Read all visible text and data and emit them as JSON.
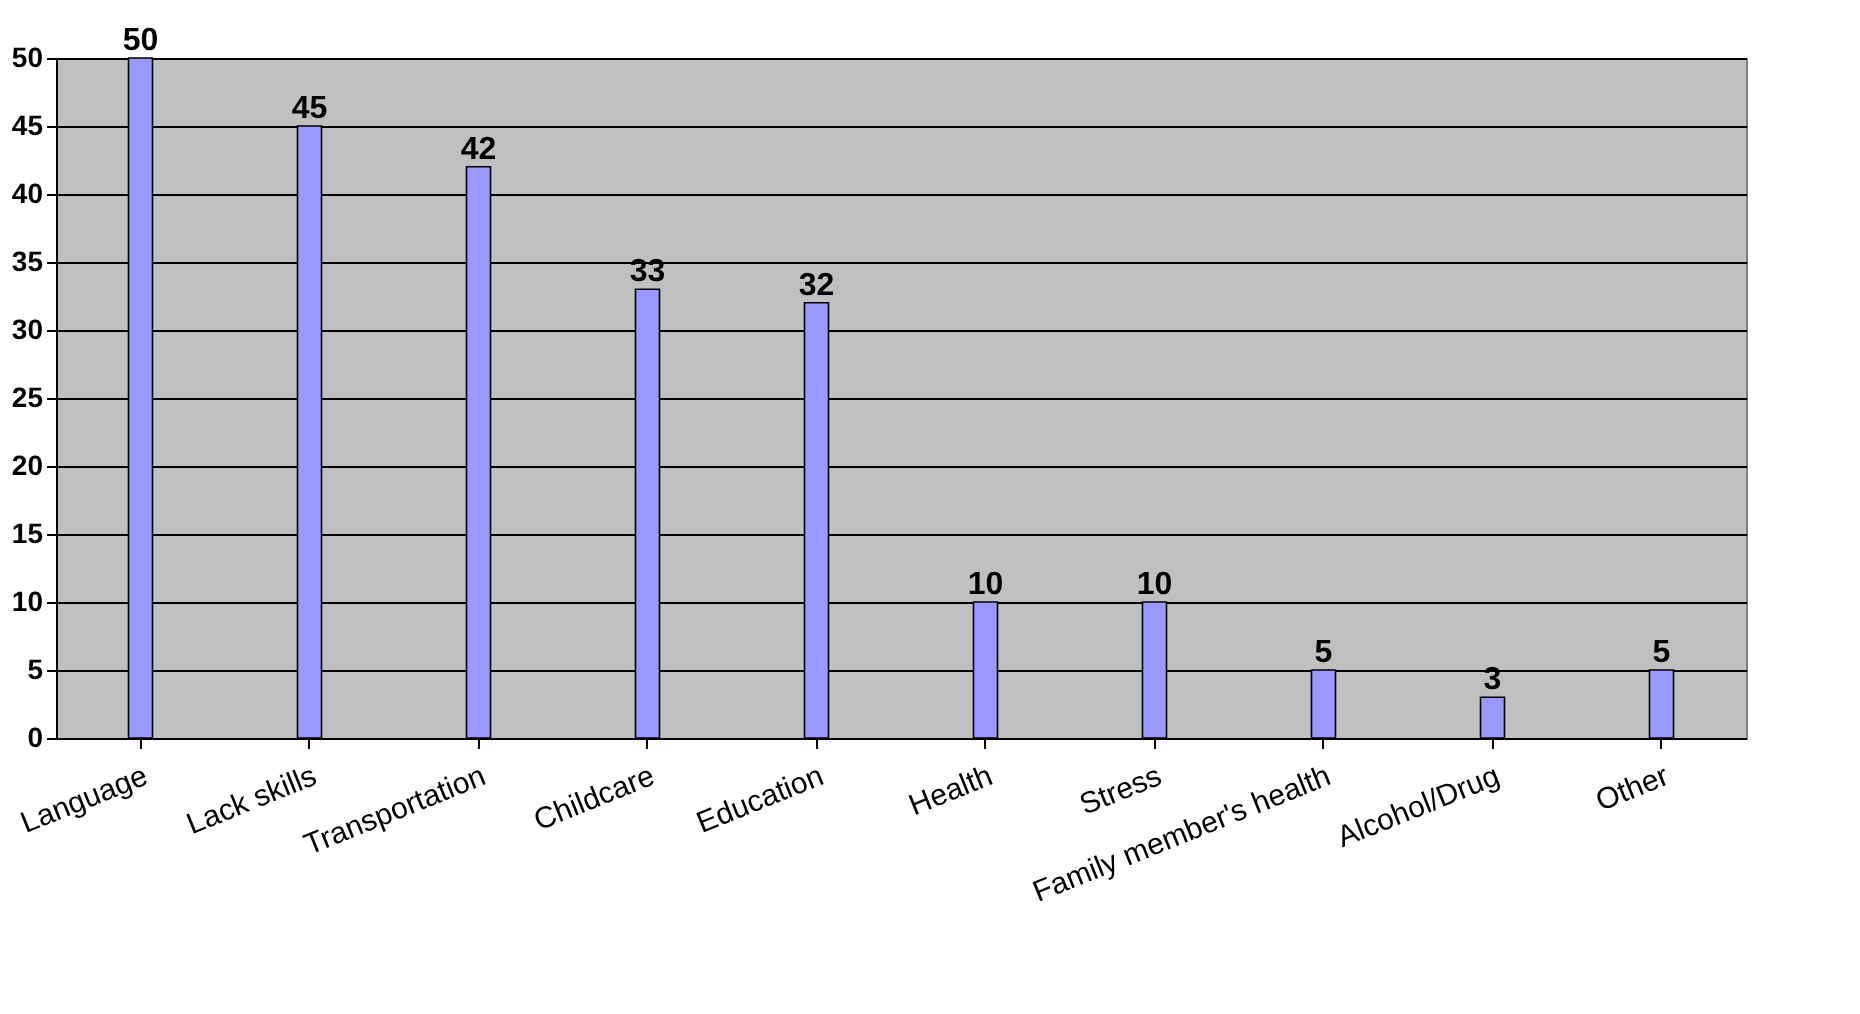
{
  "chart_data": {
    "type": "bar",
    "categories": [
      "Language",
      "Lack skills",
      "Transportation",
      "Childcare",
      "Education",
      "Health",
      "Stress",
      "Family member's health",
      "Alcohol/Drug",
      "Other"
    ],
    "values": [
      50,
      45,
      42,
      33,
      32,
      10,
      10,
      5,
      3,
      5
    ],
    "color": "#9999ff",
    "ylim": [
      0,
      50
    ],
    "yticks": [
      0,
      5,
      10,
      15,
      20,
      25,
      30,
      35,
      40,
      45,
      50
    ],
    "grid": "y",
    "data_labels": true
  }
}
